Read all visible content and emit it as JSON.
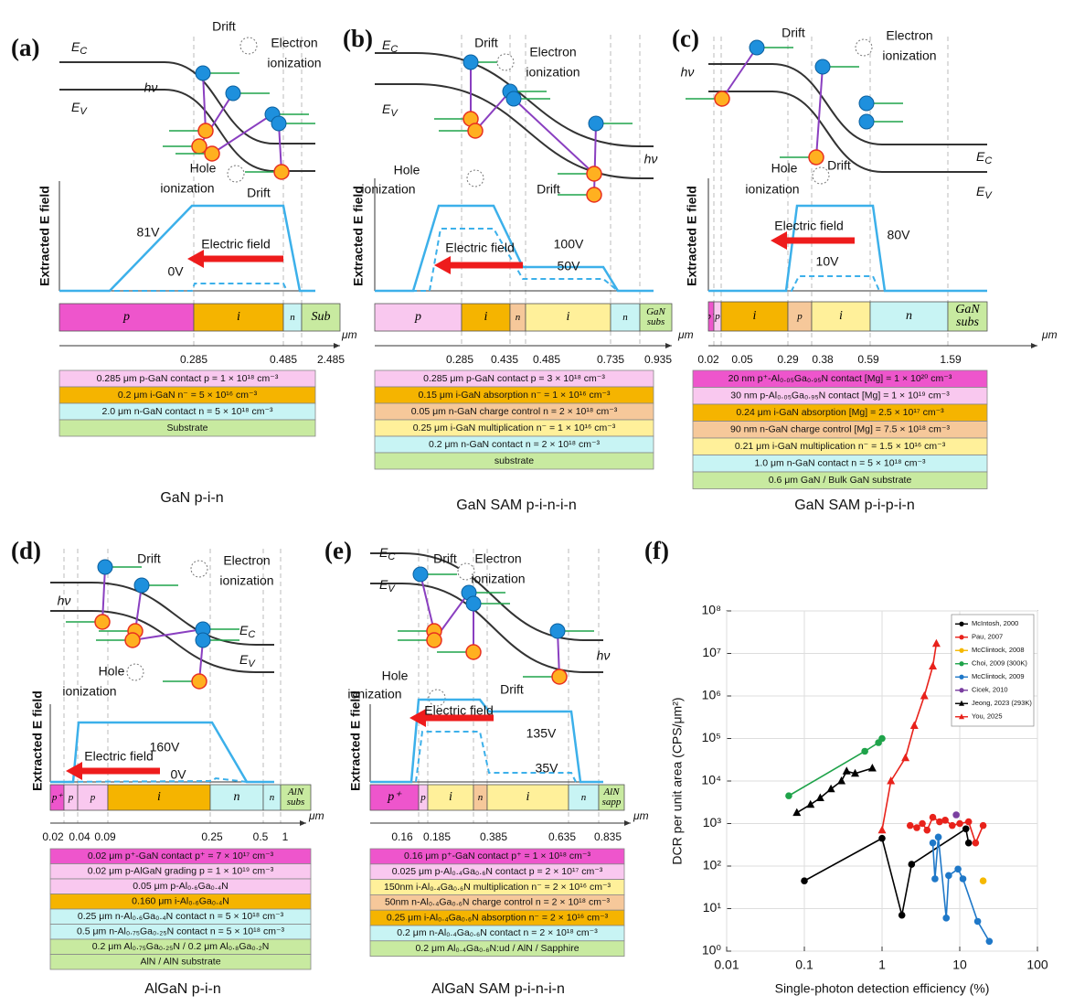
{
  "panels": [
    {
      "label": "(a)",
      "caption": "GaN p-i-n",
      "ec": [
        "E",
        "C"
      ],
      "ev": [
        "E",
        "V"
      ],
      "annotations": [
        "Drift",
        "Electron",
        "ionization",
        "hν",
        "Hole",
        "ionization",
        "Drift"
      ],
      "field_axis_label": "Extracted E field",
      "field_label": "Electric field",
      "voltages": [
        "81V",
        "0V"
      ],
      "layers": [
        "p",
        "i",
        "n",
        "Sub"
      ],
      "positions": [
        "0.285",
        "0.485",
        "2.485"
      ],
      "unit": "μm",
      "stack": [
        "0.285 μm p-GaN contact p = 1 × 10¹⁸ cm⁻³",
        "0.2 μm i-GaN n⁻ = 5 × 10¹⁶ cm⁻³",
        "2.0 μm n-GaN contact n = 5 × 10¹⁸ cm⁻³",
        "Substrate"
      ]
    },
    {
      "label": "(b)",
      "caption": "GaN SAM p-i-n-i-n",
      "ec": [
        "E",
        "C"
      ],
      "ev": [
        "E",
        "V"
      ],
      "annotations": [
        "Drift",
        "Electron",
        "ionization",
        "hν",
        "Hole",
        "ionization",
        "Drift"
      ],
      "field_axis_label": "Extracted E field",
      "field_label": "Electric field",
      "voltages": [
        "100V",
        "50V"
      ],
      "layers": [
        "p",
        "i",
        "n",
        "i",
        "n",
        "GaN subs"
      ],
      "positions": [
        "0.285",
        "0.435",
        "0.485",
        "0.735",
        "0.935"
      ],
      "unit": "μm",
      "stack": [
        "0.285 μm p-GaN contact p = 3 × 10¹⁸ cm⁻³",
        "0.15 μm i-GaN absorption n⁻ = 1 × 10¹⁶ cm⁻³",
        "0.05 μm n-GaN charge control n = 2 × 10¹⁸ cm⁻³",
        "0.25 μm i-GaN multiplication n⁻ = 1 × 10¹⁶ cm⁻³",
        "0.2 μm n-GaN contact n = 2 × 10¹⁸ cm⁻³",
        "substrate"
      ]
    },
    {
      "label": "(c)",
      "caption": "GaN SAM p-i-p-i-n",
      "ec": [
        "E",
        "C"
      ],
      "ev": [
        "E",
        "V"
      ],
      "annotations": [
        "Drift",
        "Electron",
        "ionization",
        "hν",
        "Hole",
        "ionization",
        "Drift"
      ],
      "field_axis_label": "Extracted E field",
      "field_label": "Electric field",
      "voltages": [
        "80V",
        "10V"
      ],
      "layers": [
        "p⁺",
        "p",
        "i",
        "p",
        "i",
        "n",
        "GaN subs"
      ],
      "positions": [
        "0.02",
        "0.05",
        "0.29",
        "0.38",
        "0.59",
        "1.59"
      ],
      "unit": "μm",
      "stack": [
        "20 nm p⁺-Al₀.₀₅Ga₀.₉₅N contact [Mg] = 1 × 10²⁰ cm⁻³",
        "30 nm p-Al₀.₀₅Ga₀.₉₅N contact [Mg] = 1 × 10¹⁹ cm⁻³",
        "0.24 μm i-GaN absorption [Mg] = 2.5 × 10¹⁷ cm⁻³",
        "90 nm n-GaN charge control [Mg] = 7.5 × 10¹⁸ cm⁻³",
        "0.21 μm i-GaN multiplication n⁻ = 1.5 × 10¹⁶ cm⁻³",
        "1.0 μm n-GaN contact n = 5 × 10¹⁸ cm⁻³",
        "0.6 μm GaN / Bulk GaN substrate"
      ]
    },
    {
      "label": "(d)",
      "caption": "AlGaN p-i-n",
      "ec": [
        "E",
        "C"
      ],
      "ev": [
        "E",
        "V"
      ],
      "annotations": [
        "Drift",
        "Electron",
        "ionization",
        "hν",
        "Hole",
        "ionization"
      ],
      "field_axis_label": "Extracted E field",
      "field_label": "Electric field",
      "voltages": [
        "160V",
        "0V"
      ],
      "layers": [
        "p⁺",
        "p",
        "p",
        "i",
        "n",
        "n",
        "AlN subs"
      ],
      "positions": [
        "0.02",
        "0.04",
        "0.09",
        "0.25",
        "0.5",
        "1"
      ],
      "unit": "μm",
      "stack": [
        "0.02 μm p⁺-GaN contact p⁺ = 7 × 10¹⁷ cm⁻³",
        "0.02 μm p-AlGaN grading p = 1 × 10¹⁹ cm⁻³",
        "0.05 μm p-Al₀.₆Ga₀.₄N",
        "0.160 μm i-Al₀.₆Ga₀.₄N",
        "0.25 μm n-Al₀.₆Ga₀.₄N contact n = 5 × 10¹⁸ cm⁻³",
        "0.5 μm n-Al₀.₇₅Ga₀.₂₅N contact n = 5 × 10¹⁸ cm⁻³",
        "0.2 μm Al₀.₇₅Ga₀.₂₅N / 0.2 μm Al₀.₈Ga₀.₂N",
        "AlN / AlN substrate"
      ]
    },
    {
      "label": "(e)",
      "caption": "AlGaN SAM p-i-n-i-n",
      "ec": [
        "E",
        "C"
      ],
      "ev": [
        "E",
        "V"
      ],
      "annotations": [
        "Drift",
        "Electron",
        "ionization",
        "hν",
        "Hole",
        "ionization",
        "Drift"
      ],
      "field_axis_label": "Extracted E field",
      "field_label": "Electric field",
      "voltages": [
        "135V",
        "35V"
      ],
      "layers": [
        "p⁺",
        "p",
        "i",
        "n",
        "i",
        "n",
        "AlN sapp"
      ],
      "positions": [
        "0.16",
        "0.185",
        "0.385",
        "0.635",
        "0.835"
      ],
      "unit": "μm",
      "stack": [
        "0.16 μm p⁺-GaN contact p⁺ = 1 × 10¹⁸ cm⁻³",
        "0.025 μm p-Al₀.₄Ga₀.₆N contact p = 2 × 10¹⁷ cm⁻³",
        "150nm i-Al₀.₄Ga₀.₆N multiplication n⁻ = 2 × 10¹⁶ cm⁻³",
        "50nm n-Al₀.₄Ga₀.₆N charge control n = 2 × 10¹⁸ cm⁻³",
        "0.25 μm i-Al₀.₄Ga₀.₆N absorption n⁻ = 2 × 10¹⁶ cm⁻³",
        "0.2 μm n-Al₀.₄Ga₀.₆N contact n = 2 × 10¹⁸ cm⁻³",
        "0.2 μm Al₀.₄Ga₀.₆N:ud / AlN / Sapphire"
      ]
    }
  ],
  "chart_data": {
    "type": "scatter",
    "panel_label": "(f)",
    "x_label": "Single-photon detection efficiency (%)",
    "y_label": "DCR per unit area (CPS/μm²)",
    "xscale": "log",
    "yscale": "log",
    "grid": true,
    "legend": "upper right",
    "xlim": [
      0.01,
      100
    ],
    "xticks": [
      0.01,
      0.1,
      1,
      10,
      100
    ],
    "ylim": [
      1,
      100000000
    ],
    "yticks": [
      {
        "value": 1,
        "label": "10⁰"
      },
      {
        "value": 10,
        "label": "10¹"
      },
      {
        "value": 100,
        "label": "10²"
      },
      {
        "value": 1000,
        "label": "10³"
      },
      {
        "value": 10000,
        "label": "10⁴"
      },
      {
        "value": 100000,
        "label": "10⁵"
      },
      {
        "value": 1000000,
        "label": "10⁶"
      },
      {
        "value": 10000000,
        "label": "10⁷"
      },
      {
        "value": 100000000,
        "label": "10⁸"
      }
    ],
    "series": [
      {
        "name": "McIntosh, 2000",
        "color": "#000000",
        "marker": "circle",
        "x": [
          0.1,
          1,
          1.8,
          2.4,
          12,
          13
        ],
        "values": [
          45,
          450,
          7,
          110,
          750,
          350
        ]
      },
      {
        "name": "Pau, 2007",
        "color": "#e8221b",
        "marker": "circle",
        "x": [
          2.3,
          2.8,
          3.3,
          3.8,
          4.5,
          5.5,
          6.5,
          8,
          10,
          13,
          16,
          20
        ],
        "values": [
          900,
          800,
          1000,
          700,
          1400,
          1100,
          1200,
          900,
          1000,
          1100,
          350,
          900
        ]
      },
      {
        "name": "McClintock, 2008",
        "color": "#f5b800",
        "marker": "circle",
        "x": [
          20
        ],
        "values": [
          45
        ]
      },
      {
        "name": "Choi, 2009 (300K)",
        "color": "#1fa34a",
        "marker": "circle",
        "x": [
          0.063,
          0.6,
          0.9,
          1.0
        ],
        "values": [
          4500,
          50000,
          80000,
          100000
        ]
      },
      {
        "name": "McClintock, 2009",
        "color": "#1f78c8",
        "marker": "circle",
        "x": [
          4.5,
          4.8,
          5.3,
          6.7,
          7.2,
          9.5,
          11,
          17,
          24
        ],
        "values": [
          350,
          50,
          480,
          6,
          60,
          85,
          50,
          5,
          1.7
        ]
      },
      {
        "name": "Cicek, 2010",
        "color": "#7a3fa0",
        "marker": "circle",
        "x": [
          9
        ],
        "values": [
          1600
        ]
      },
      {
        "name": "Jeong, 2023 (293K)",
        "color": "#000000",
        "marker": "triangle",
        "x": [
          0.08,
          0.12,
          0.16,
          0.22,
          0.3,
          0.35,
          0.45,
          0.75
        ],
        "values": [
          1800,
          2800,
          4000,
          6500,
          10000,
          17000,
          15000,
          20000
        ]
      },
      {
        "name": "You, 2025",
        "color": "#e8221b",
        "marker": "triangle",
        "x": [
          1,
          1.3,
          2,
          2.6,
          3.5,
          4.5,
          5
        ],
        "values": [
          700,
          10000,
          35000,
          200000,
          1000000,
          5000000,
          17000000
        ]
      }
    ]
  }
}
